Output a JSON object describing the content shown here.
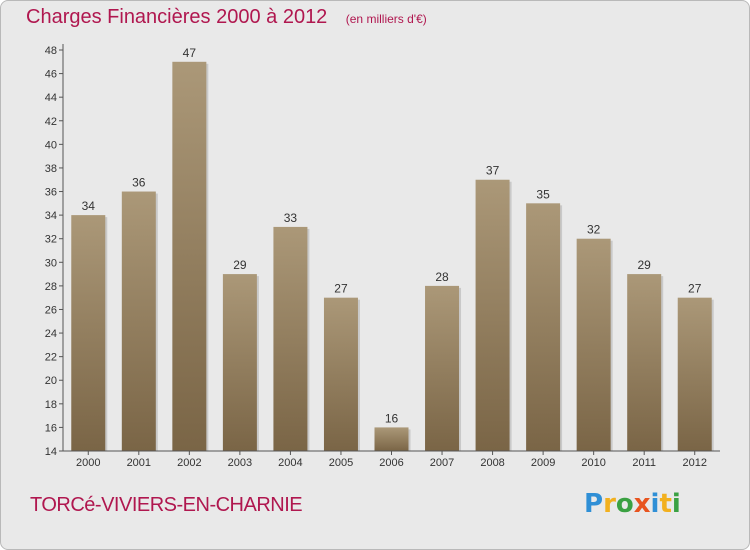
{
  "header": {
    "title": "Charges Financières 2000 à 2012",
    "unit_note": "(en milliers d'€)"
  },
  "footer": {
    "commune": "TORCé-VIVIERS-EN-CHARNIE",
    "logo_letters": [
      {
        "ch": "P",
        "color": "#2f8fd6"
      },
      {
        "ch": "r",
        "color": "#f2b01e"
      },
      {
        "ch": "o",
        "color": "#3aa142"
      },
      {
        "ch": "x",
        "color": "#e8541f"
      },
      {
        "ch": "i",
        "color": "#2f8fd6"
      },
      {
        "ch": "t",
        "color": "#f2b01e"
      },
      {
        "ch": "i",
        "color": "#3aa142"
      }
    ]
  },
  "colors": {
    "bar_top": "#ab9878",
    "bar_bottom": "#7a6546",
    "title": "#b0174f"
  },
  "chart_data": {
    "type": "bar",
    "title": "Charges Financières 2000 à 2012",
    "subtitle": "(en milliers d'€)",
    "categories": [
      "2000",
      "2001",
      "2002",
      "2003",
      "2004",
      "2005",
      "2006",
      "2007",
      "2008",
      "2009",
      "2010",
      "2011",
      "2012"
    ],
    "values": [
      34,
      36,
      47,
      29,
      33,
      27,
      16,
      28,
      37,
      35,
      32,
      29,
      27
    ],
    "ylim": [
      14,
      48
    ],
    "yticks": [
      14,
      16,
      18,
      20,
      22,
      24,
      26,
      28,
      30,
      32,
      34,
      36,
      38,
      40,
      42,
      44,
      46,
      48
    ],
    "grid": false,
    "xlabel": "",
    "ylabel": ""
  }
}
